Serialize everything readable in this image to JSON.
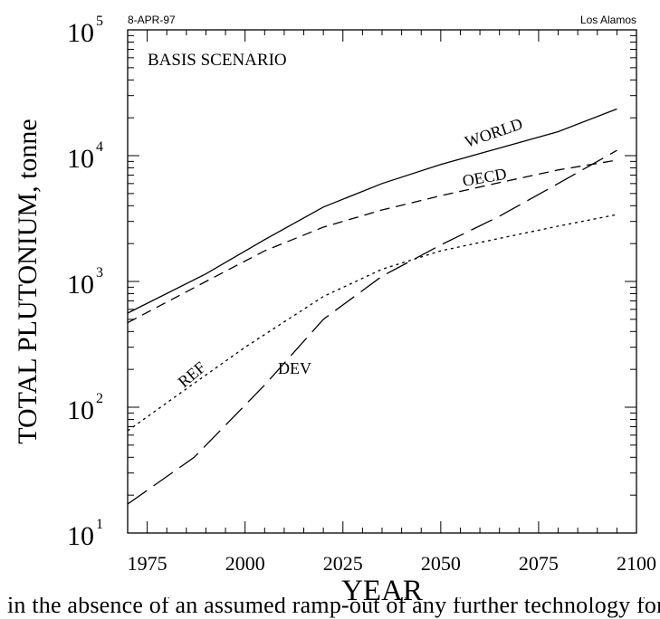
{
  "header": {
    "date_stamp": "8-APR-97",
    "site_stamp": "Los Alamos"
  },
  "caption_fragment": "in the absence of an assumed ramp-out of any further technology for the",
  "chart_data": {
    "type": "line",
    "title": "BASIS SCENARIO",
    "xlabel": "YEAR",
    "ylabel": "TOTAL PLUTONIUM, tonne",
    "xlim": [
      1970,
      2100
    ],
    "ylim": [
      10,
      100000
    ],
    "y_scale": "log",
    "x_ticks": [
      "1975",
      "2000",
      "2025",
      "2050",
      "2075",
      "2100"
    ],
    "y_ticks": [
      {
        "base": "10",
        "exp": "1"
      },
      {
        "base": "10",
        "exp": "2"
      },
      {
        "base": "10",
        "exp": "3"
      },
      {
        "base": "10",
        "exp": "4"
      },
      {
        "base": "10",
        "exp": "5"
      }
    ],
    "grid": false,
    "legend": "none",
    "series": [
      {
        "name": "WORLD",
        "style": "solid",
        "x": [
          1970,
          1990,
          2005,
          2020,
          2035,
          2050,
          2065,
          2080,
          2095
        ],
        "y": [
          560,
          1150,
          2150,
          3900,
          6000,
          8500,
          11500,
          15500,
          23500
        ]
      },
      {
        "name": "OECD",
        "style": "dash",
        "x": [
          1970,
          1990,
          2005,
          2020,
          2035,
          2050,
          2065,
          2080,
          2095
        ],
        "y": [
          470,
          1000,
          1750,
          2700,
          3700,
          4800,
          6100,
          7700,
          9200
        ]
      },
      {
        "name": "REF",
        "style": "dot",
        "x": [
          1970,
          1985,
          2000,
          2020,
          2035,
          2050,
          2065,
          2080,
          2095
        ],
        "y": [
          65,
          140,
          300,
          760,
          1250,
          1750,
          2200,
          2750,
          3400
        ]
      },
      {
        "name": "DEV",
        "style": "longdash",
        "x": [
          1970,
          1987,
          2005,
          2020,
          2035,
          2050,
          2065,
          2080,
          2095
        ],
        "y": [
          17,
          40,
          150,
          500,
          1100,
          1950,
          3300,
          6000,
          11000
        ]
      }
    ]
  }
}
